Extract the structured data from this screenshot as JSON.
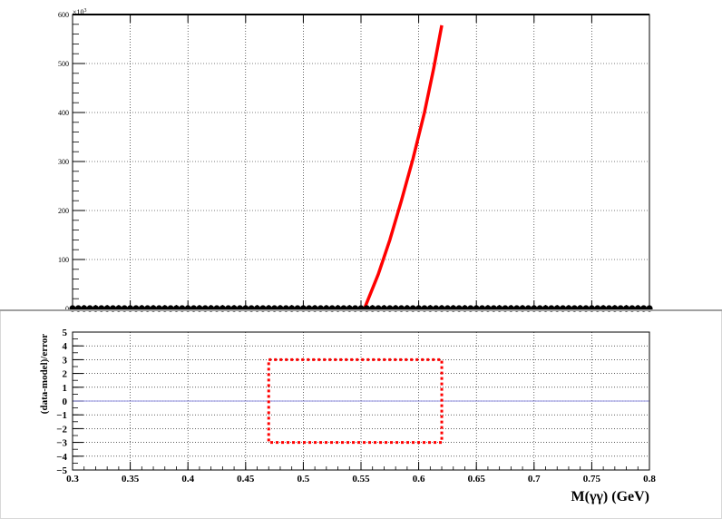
{
  "chart_data": [
    {
      "type": "scatter",
      "panel": "top",
      "title": "",
      "xlabel": "",
      "ylabel": "",
      "y_multiplier_label": "×10",
      "y_multiplier_exponent": "3",
      "xlim": [
        0.3,
        0.8
      ],
      "ylim": [
        0,
        600
      ],
      "grid": true,
      "yticks": [
        0,
        100,
        200,
        300,
        400,
        500,
        600
      ],
      "ytick_labels": [
        "0",
        "100",
        "200",
        "300",
        "400",
        "500",
        "600"
      ],
      "series": [
        {
          "kind": "markers",
          "color": "#000000",
          "x": [
            0.3,
            0.305,
            0.31,
            0.315,
            0.32,
            0.325,
            0.33,
            0.335,
            0.34,
            0.345,
            0.35,
            0.355,
            0.36,
            0.365,
            0.37,
            0.375,
            0.38,
            0.385,
            0.39,
            0.395,
            0.4,
            0.405,
            0.41,
            0.415,
            0.42,
            0.425,
            0.43,
            0.435,
            0.44,
            0.445,
            0.45,
            0.455,
            0.46,
            0.465,
            0.47,
            0.475,
            0.48,
            0.485,
            0.49,
            0.495,
            0.5,
            0.505,
            0.51,
            0.515,
            0.52,
            0.525,
            0.53,
            0.535,
            0.54,
            0.545,
            0.55,
            0.555,
            0.56,
            0.565,
            0.57,
            0.575,
            0.58,
            0.585,
            0.59,
            0.595,
            0.6,
            0.605,
            0.61,
            0.615,
            0.62,
            0.625,
            0.63,
            0.635,
            0.64,
            0.645,
            0.65,
            0.655,
            0.66,
            0.665,
            0.67,
            0.675,
            0.68,
            0.685,
            0.69,
            0.695,
            0.7,
            0.705,
            0.71,
            0.715,
            0.72,
            0.725,
            0.73,
            0.735,
            0.74,
            0.745,
            0.75,
            0.755,
            0.76,
            0.765,
            0.77,
            0.775,
            0.78,
            0.785,
            0.79,
            0.795,
            0.8
          ],
          "y": [
            0,
            0,
            0,
            0,
            0,
            0,
            0,
            0,
            0,
            0,
            0,
            0,
            0,
            0,
            0,
            0,
            0,
            0,
            0,
            0,
            0,
            0,
            0,
            0,
            0,
            0,
            0,
            0,
            0,
            0,
            0,
            0,
            0,
            0,
            0,
            0,
            0,
            0,
            0,
            0,
            0,
            0,
            0,
            0,
            0,
            0,
            0,
            0,
            0,
            0,
            0,
            0,
            0,
            0,
            0,
            0,
            0,
            0,
            0,
            0,
            0,
            0,
            0,
            0,
            0,
            0,
            0,
            0,
            0,
            0,
            0,
            0,
            0,
            0,
            0,
            0,
            0,
            0,
            0,
            0,
            0,
            0,
            0,
            0,
            0,
            0,
            0,
            0,
            0,
            0,
            0,
            0,
            0,
            0,
            0,
            0,
            0,
            0,
            0,
            0,
            0
          ]
        },
        {
          "kind": "line",
          "color": "#ff0000",
          "x": [
            0.553,
            0.565,
            0.575,
            0.585,
            0.595,
            0.605,
            0.613,
            0.62
          ],
          "y": [
            0,
            70,
            140,
            220,
            305,
            400,
            490,
            578
          ]
        }
      ]
    },
    {
      "type": "line",
      "panel": "bottom",
      "title": "",
      "xlabel": "M(γγ) (GeV)",
      "ylabel": "(data-model)/error",
      "xlim": [
        0.3,
        0.8
      ],
      "ylim": [
        -5,
        5
      ],
      "grid": true,
      "xticks": [
        0.3,
        0.35,
        0.4,
        0.45,
        0.5,
        0.55,
        0.6,
        0.65,
        0.7,
        0.75,
        0.8
      ],
      "xtick_labels": [
        "0.3",
        "0.35",
        "0.4",
        "0.45",
        "0.5",
        "0.55",
        "0.6",
        "0.65",
        "0.7",
        "0.75",
        "0.8"
      ],
      "yticks": [
        -5,
        -4,
        -3,
        -2,
        -1,
        0,
        1,
        2,
        3,
        4,
        5
      ],
      "ytick_labels": [
        "−5",
        "−4",
        "−3",
        "−2",
        "−1",
        "0",
        "1",
        "2",
        "3",
        "4",
        "5"
      ],
      "series": [
        {
          "kind": "line",
          "color": "#6a6ad8",
          "x": [
            0.3,
            0.8
          ],
          "y": [
            0,
            0
          ]
        }
      ],
      "annotations": [
        {
          "kind": "dashed-box",
          "color": "#ff0000",
          "x": [
            0.47,
            0.62
          ],
          "y": [
            -3,
            3
          ]
        }
      ]
    }
  ]
}
